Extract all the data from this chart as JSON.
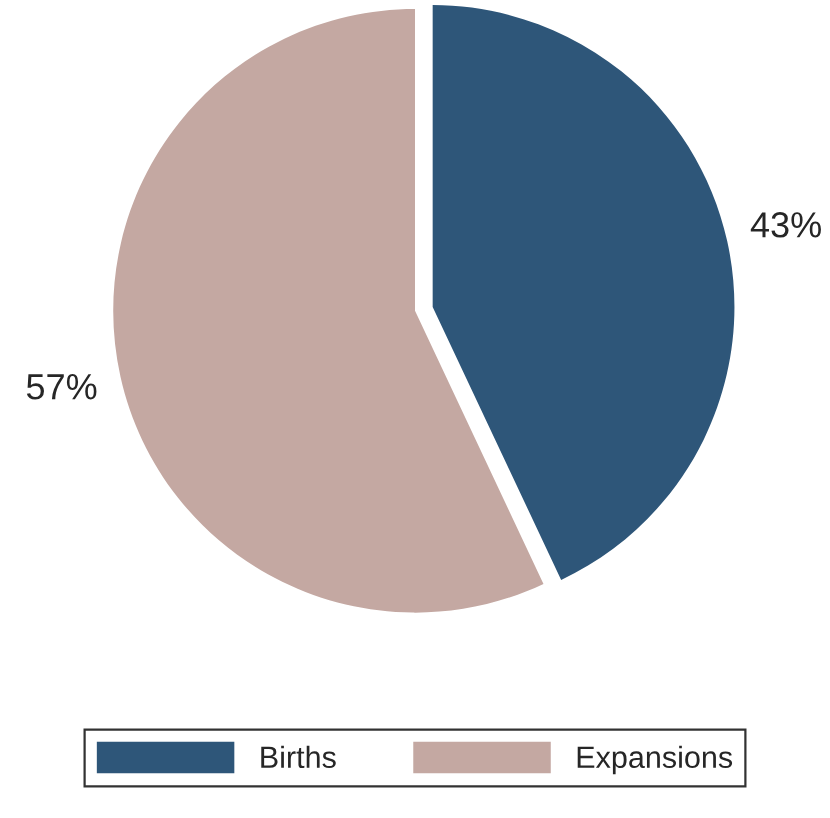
{
  "chart_data": {
    "type": "pie",
    "categories": [
      "Births",
      "Expansions"
    ],
    "values": [
      43,
      57
    ],
    "colors": [
      "#2e5679",
      "#c4a8a2"
    ],
    "value_labels": [
      "43%",
      "57%"
    ],
    "legend": "bottom"
  }
}
